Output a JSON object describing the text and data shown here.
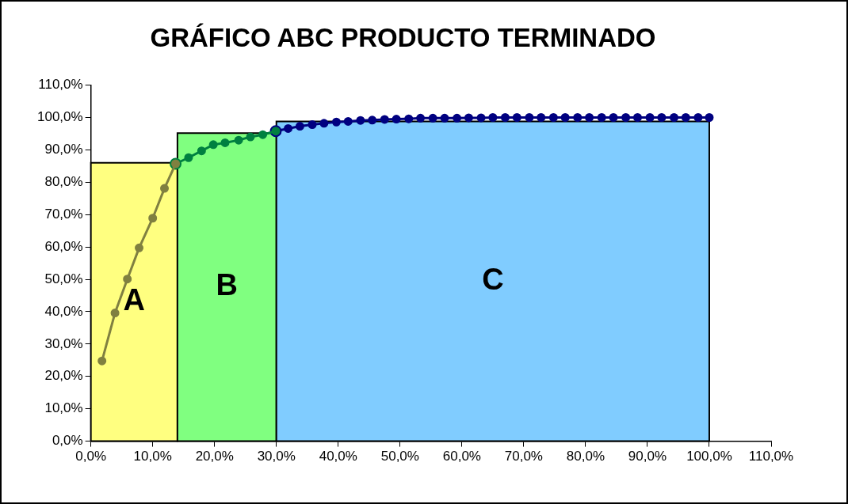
{
  "chart_data": {
    "type": "histogram",
    "title": "GRÁFICO ABC PRODUCTO TERMINADO",
    "bins": [
      0,
      14,
      30,
      100
    ],
    "values": [
      86,
      95.2,
      98.8
    ],
    "colors": [
      "#ffff80",
      "#80ff80",
      "#80ccff"
    ],
    "series": [
      {
        "type": "line",
        "color": "#808040",
        "x": [
          1.8,
          3.9,
          5.9,
          7.8,
          10,
          11.9,
          13.7
        ],
        "values": [
          24.8,
          39.6,
          50.1,
          59.7,
          68.9,
          78.1,
          85.7
        ]
      },
      {
        "type": "line",
        "color": "#008040",
        "x": [
          13.7,
          15.8,
          17.9,
          19.8,
          21.7,
          23.9,
          25.8,
          27.8,
          29.9
        ],
        "values": [
          85.7,
          87.6,
          89.7,
          91.6,
          92.2,
          93,
          94,
          94.7,
          95.8
        ]
      },
      {
        "type": "line",
        "color": "#000080",
        "x": [
          29.9,
          31.9,
          33.8,
          35.8,
          37.7,
          39.7,
          41.6,
          43.6,
          45.5,
          47.5,
          49.4,
          51.4,
          53.3,
          55.3,
          57.2,
          59.2,
          61.1,
          63.1,
          65,
          67,
          68.9,
          70.9,
          72.8,
          74.8,
          76.7,
          78.7,
          80.6,
          82.6,
          84.5,
          86.5,
          88.4,
          90.4,
          92.3,
          94.3,
          96.2,
          98.2,
          100
        ],
        "values": [
          95.8,
          96.6,
          97.3,
          97.8,
          98.2,
          98.6,
          98.8,
          99.1,
          99.2,
          99.4,
          99.5,
          99.6,
          99.8,
          99.8,
          99.8,
          99.8,
          99.9,
          99.9,
          100,
          100,
          100,
          100,
          100,
          100,
          100,
          100,
          100,
          100,
          100,
          100,
          100,
          100,
          100,
          100,
          100,
          100,
          100
        ]
      }
    ],
    "marker": "circle",
    "line_style": "solid",
    "grid": false,
    "legend": false,
    "xlim": [
      0,
      110
    ],
    "xticks": [
      {
        "value": 0,
        "label": "0,0%"
      },
      {
        "value": 10,
        "label": "10,0%"
      },
      {
        "value": 20,
        "label": "20,0%"
      },
      {
        "value": 30,
        "label": "30,0%"
      },
      {
        "value": 40,
        "label": "40,0%"
      },
      {
        "value": 50,
        "label": "50,0%"
      },
      {
        "value": 60,
        "label": "60,0%"
      },
      {
        "value": 70,
        "label": "70,0%"
      },
      {
        "value": 80,
        "label": "80,0%"
      },
      {
        "value": 90,
        "label": "90,0%"
      },
      {
        "value": 100,
        "label": "100,0%"
      },
      {
        "value": 110,
        "label": "110,0%"
      }
    ],
    "ylim": [
      0,
      110
    ],
    "yticks": [
      {
        "value": 0,
        "label": "0,0%"
      },
      {
        "value": 10,
        "label": "10,0%"
      },
      {
        "value": 20,
        "label": "20,0%"
      },
      {
        "value": 30,
        "label": "30,0%"
      },
      {
        "value": 40,
        "label": "40,0%"
      },
      {
        "value": 50,
        "label": "50,0%"
      },
      {
        "value": 60,
        "label": "60,0%"
      },
      {
        "value": 70,
        "label": "70,0%"
      },
      {
        "value": 80,
        "label": "80,0%"
      },
      {
        "value": 90,
        "label": "90,0%"
      },
      {
        "value": 100,
        "label": "100,0%"
      },
      {
        "value": 110,
        "label": "110,0%"
      }
    ],
    "annotations": [
      "A",
      "B",
      "C"
    ]
  }
}
